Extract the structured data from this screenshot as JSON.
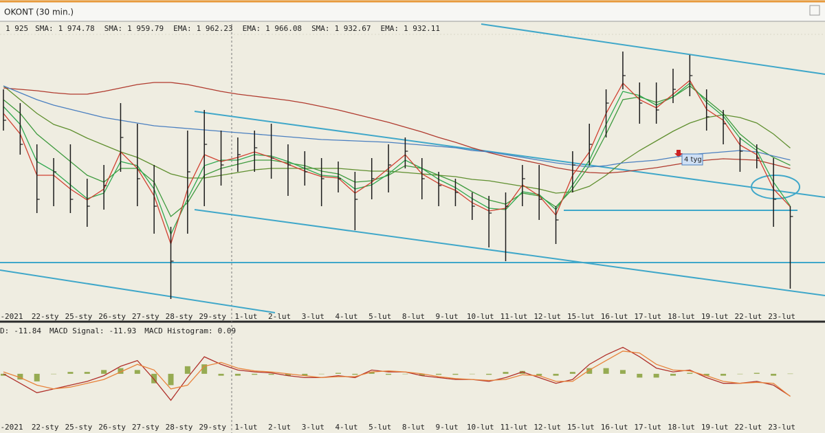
{
  "chart_data": [
    {
      "type": "ohlc",
      "title": "OKONT (30 min.)",
      "categories": [
        "-2021",
        null,
        "22-sty",
        null,
        "25-sty",
        null,
        "26-sty",
        null,
        "27-sty",
        null,
        "28-sty",
        null,
        "29-sty",
        null,
        "1-lut",
        null,
        "2-lut",
        null,
        "3-lut",
        null,
        "4-lut",
        null,
        "5-lut",
        null,
        "8-lut",
        null,
        "9-lut",
        null,
        "10-lut",
        null,
        "11-lut",
        null,
        "12-lut",
        null,
        "15-lut",
        null,
        "16-lut",
        null,
        "17-lut",
        null,
        "18-lut",
        null,
        "19-lut",
        null,
        "22-lut",
        null,
        "23-lut",
        null
      ],
      "ylim": [
        1855,
        2065
      ],
      "color": "#1a1a1a",
      "value_label": "1 925",
      "label_color": "#d4a017",
      "high": [
        2017.5,
        2007.5,
        1977.5,
        1967.5,
        1977.5,
        1952.5,
        1962.5,
        2007.5,
        1992.5,
        1962.5,
        1917.5,
        1987.5,
        2002.5,
        1987.5,
        1982.5,
        1987.5,
        1992.5,
        1977.5,
        1972.5,
        1967.5,
        1965,
        1957.5,
        1967.5,
        1977.5,
        1982.5,
        1967.5,
        1957.5,
        1952.5,
        1942.5,
        1940,
        1942.5,
        1962.5,
        1962.5,
        1932.5,
        1972.5,
        1992.5,
        2017.5,
        2045,
        2022.5,
        2022.5,
        2032.5,
        2042.5,
        2017.5,
        2002.5,
        1982.5,
        1977.5,
        1967.5,
        1932.5
      ],
      "low": [
        1987.5,
        1970,
        1927.5,
        1932.5,
        1927.5,
        1917.5,
        1930,
        1957.5,
        1932.5,
        1912.5,
        1865,
        1912.5,
        1932.5,
        1947.5,
        1957.5,
        1957.5,
        1952.5,
        1940,
        1947.5,
        1932.5,
        1942.5,
        1915,
        1937.5,
        1942.5,
        1960,
        1937.5,
        1932.5,
        1932.5,
        1922.5,
        1902.5,
        1892.5,
        1932.5,
        1922.5,
        1905,
        1942.5,
        1962.5,
        1982.5,
        2017.5,
        1992.5,
        1992.5,
        2007.5,
        2012.5,
        1987.5,
        1977.5,
        1957.5,
        1960,
        1917.5,
        1872.5
      ],
      "close": [
        1995,
        1977.5,
        1937.5,
        1957.5,
        1937.5,
        1932.5,
        1947.5,
        1982.5,
        1952.5,
        1932.5,
        1892.5,
        1957.5,
        1977.5,
        1962.5,
        1970,
        1975,
        1967.5,
        1962.5,
        1957.5,
        1952.5,
        1952.5,
        1937.5,
        1952.5,
        1962.5,
        1972.5,
        1952.5,
        1947.5,
        1942.5,
        1932.5,
        1927.5,
        1932.5,
        1952.5,
        1937.5,
        1922.5,
        1962.5,
        1977.5,
        2007.5,
        2027.5,
        2007.5,
        2002.5,
        2017.5,
        2027.5,
        1997.5,
        1992.5,
        1972.5,
        1967.5,
        1937.5,
        1925
      ],
      "series": [
        {
          "name": "SMA:",
          "value_label": "1 974.78",
          "color": "#5f8f2f",
          "values": [
            2020,
            2010,
            2000,
            1992,
            1988,
            1982,
            1977,
            1972,
            1968,
            1962,
            1956,
            1953,
            1953,
            1955,
            1957,
            1959,
            1960,
            1960,
            1960,
            1960,
            1960,
            1959,
            1958,
            1958,
            1957,
            1956,
            1955,
            1954,
            1952,
            1951,
            1949,
            1947,
            1945,
            1942,
            1943,
            1947,
            1955,
            1965,
            1973,
            1980,
            1987,
            1993,
            1997,
            1999,
            1997,
            1993,
            1985,
            1974.78
          ]
        },
        {
          "name": "SMA:",
          "value_label": "1 959.79",
          "color": "#b03a2e",
          "values": [
            2018.5,
            2017.5,
            2016.5,
            2015,
            2014,
            2014,
            2016,
            2018.5,
            2021,
            2022.5,
            2022.5,
            2021,
            2018.5,
            2016,
            2014,
            2012.5,
            2011,
            2009.5,
            2007.5,
            2005,
            2002.5,
            1999.5,
            1996.5,
            1993.5,
            1990,
            1986.5,
            1982.5,
            1979,
            1975,
            1971.5,
            1968.5,
            1966,
            1963.5,
            1960.5,
            1958.5,
            1957,
            1956.5,
            1957.5,
            1959,
            1960.5,
            1962.5,
            1964.5,
            1966,
            1967,
            1966.5,
            1966,
            1963,
            1959.79
          ]
        },
        {
          "name": "EMA:",
          "value_label": "1 962.23",
          "color": "#3d9a3d",
          "values": [
            2010,
            2000,
            1985,
            1975,
            1965,
            1955,
            1950,
            1960,
            1960,
            1950,
            1925,
            1935,
            1955,
            1960,
            1963,
            1966,
            1966,
            1964,
            1962,
            1958,
            1956,
            1950,
            1951,
            1955,
            1962,
            1960,
            1955,
            1950,
            1943,
            1937,
            1934,
            1942,
            1940,
            1932,
            1945,
            1962,
            1985,
            2010,
            2012,
            2008,
            2012,
            2020,
            2010,
            2000,
            1985,
            1975,
            1968,
            1962.23
          ]
        },
        {
          "name": "EMA:",
          "value_label": "1 966.08",
          "color": "#4a7fc0",
          "values": [
            2020,
            2015,
            2010,
            2006,
            2003,
            2000,
            1997,
            1995,
            1993,
            1991,
            1990,
            1989,
            1988,
            1987,
            1986,
            1985,
            1984,
            1983,
            1982,
            1981,
            1980.5,
            1980,
            1979.5,
            1979,
            1978,
            1977,
            1976,
            1975,
            1973,
            1972,
            1970,
            1968,
            1966,
            1964,
            1962.5,
            1961,
            1962,
            1964,
            1965,
            1966,
            1968,
            1970,
            1971,
            1972,
            1973,
            1972,
            1969,
            1966.08
          ]
        },
        {
          "name": "SMA:",
          "value_label": "1 932.67",
          "color": "#2fa84f",
          "values": [
            2005,
            1992,
            1965,
            1958,
            1948,
            1938,
            1942,
            1965,
            1962,
            1945,
            1912,
            1938,
            1962,
            1966,
            1966,
            1970,
            1969,
            1965,
            1960,
            1955,
            1954,
            1945,
            1948,
            1956,
            1966,
            1960,
            1952,
            1946,
            1938,
            1931,
            1930,
            1943,
            1941,
            1930,
            1948,
            1966,
            1992,
            2016,
            2013,
            2006,
            2012,
            2022,
            2008,
            1998,
            1982,
            1973,
            1950,
            1932.67
          ]
        },
        {
          "name": "EMA:",
          "value_label": "1 932.11",
          "color": "#d04030",
          "values": [
            2000,
            1985,
            1955,
            1955,
            1945,
            1937,
            1945,
            1972,
            1960,
            1940,
            1905,
            1945,
            1970,
            1965,
            1968,
            1972,
            1968,
            1963,
            1958,
            1954,
            1953,
            1942,
            1950,
            1960,
            1970,
            1956,
            1949,
            1944,
            1935,
            1929,
            1931,
            1948,
            1940,
            1926,
            1955,
            1972,
            2000,
            2022,
            2010,
            2004,
            2014,
            2024,
            2003,
            1995,
            1977,
            1970,
            1945,
            1932.11
          ]
        }
      ],
      "annotations": [
        "4 tyg"
      ]
    },
    {
      "type": "macd",
      "categories": [
        "-2021",
        null,
        "22-sty",
        null,
        "25-sty",
        null,
        "26-sty",
        null,
        "27-sty",
        null,
        "28-sty",
        null,
        "29-sty",
        null,
        "1-lut",
        null,
        "2-lut",
        null,
        "3-lut",
        null,
        "4-lut",
        null,
        "5-lut",
        null,
        "8-lut",
        null,
        "9-lut",
        null,
        "10-lut",
        null,
        "11-lut",
        null,
        "12-lut",
        null,
        "15-lut",
        null,
        "16-lut",
        null,
        "17-lut",
        null,
        "18-lut",
        null,
        "19-lut",
        null,
        "22-lut",
        null,
        "23-lut",
        null
      ],
      "ylim": [
        -24,
        25
      ],
      "series": [
        {
          "name": "D:",
          "value_label": "-11.84",
          "color": "#b0302a",
          "style": "line",
          "values": [
            0,
            -5,
            -10,
            -8,
            -6,
            -4,
            -1,
            4,
            7,
            -3,
            -14,
            -2,
            9,
            5,
            2,
            1,
            0.5,
            -1,
            -2,
            -2,
            -1,
            -2,
            2,
            1,
            1,
            -1,
            -2,
            -3,
            -3,
            -4,
            -2,
            1,
            -2,
            -5,
            -3,
            5,
            10,
            14,
            9,
            3,
            1,
            2,
            -2,
            -5,
            -5,
            -4,
            -6,
            -11.84
          ]
        },
        {
          "name": "MACD Signal:",
          "value_label": "-11.93",
          "color": "#e8823a",
          "style": "line",
          "values": [
            1,
            -2,
            -6,
            -8,
            -7,
            -5,
            -3,
            1,
            5,
            2,
            -8,
            -6,
            4,
            6,
            3,
            1.5,
            1,
            0,
            -1,
            -2,
            -1.5,
            -1.5,
            1,
            1.5,
            1,
            0,
            -1.5,
            -2.5,
            -3,
            -3.5,
            -3,
            -0.5,
            -1,
            -4,
            -4,
            2,
            7,
            12,
            11,
            5,
            2,
            1.5,
            -1,
            -4,
            -5,
            -4.5,
            -5,
            -11.93
          ]
        },
        {
          "name": "MACD Histogram:",
          "value_label": "0.09",
          "color": "#7f9a2e",
          "style": "histogram",
          "values": [
            -1,
            -3,
            -4,
            0,
            1,
            1,
            2,
            3,
            2,
            -5,
            -6,
            4,
            5,
            -1,
            -1,
            -0.5,
            -0.5,
            -1,
            -1,
            0,
            0.5,
            -0.5,
            1,
            -0.5,
            0,
            -1,
            -0.5,
            -0.5,
            0,
            -0.5,
            1,
            1.5,
            -1,
            -1,
            1,
            3,
            3,
            2,
            -2,
            -2,
            -1,
            0.5,
            -1,
            -1,
            0,
            0.5,
            -1,
            0.09
          ]
        }
      ]
    }
  ]
}
